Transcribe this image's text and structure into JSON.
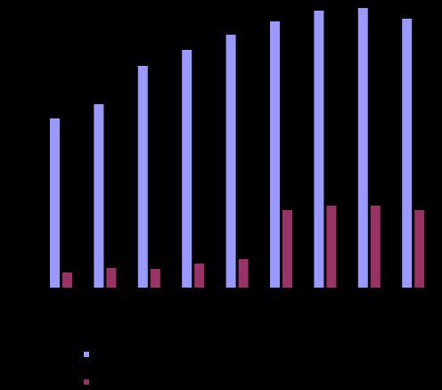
{
  "chart_data": {
    "type": "bar",
    "categories": [
      "",
      "",
      "",
      "",
      "",
      "",
      "",
      "",
      ""
    ],
    "series": [
      {
        "values": [
          190,
          206,
          249,
          267,
          284,
          299,
          311,
          314,
          302
        ],
        "color": "#9999ff"
      },
      {
        "values": [
          17,
          22,
          21,
          27,
          32,
          87,
          92,
          92,
          87
        ],
        "color": "#993366"
      }
    ],
    "ylim": [
      0,
      320
    ],
    "grid": false,
    "legend": "bottom-left",
    "background": "#000000"
  }
}
